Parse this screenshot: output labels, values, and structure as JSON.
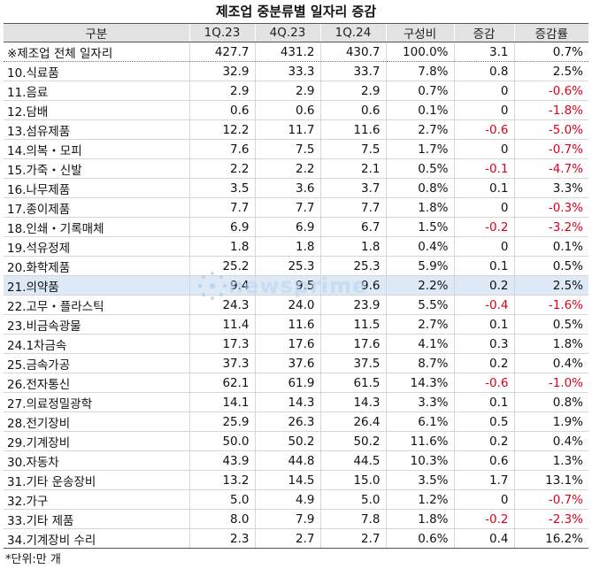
{
  "title": "제조업 중분류별 일자리 증감",
  "headers": [
    "구분",
    "1Q.23",
    "4Q.23",
    "1Q.24",
    "구성비",
    "증감",
    "증감률"
  ],
  "rows": [
    {
      "name": "※제조업 전체 일자리",
      "q1_23": "427.7",
      "q4_23": "431.2",
      "q1_24": "430.7",
      "share": "100.0%",
      "change": "3.1",
      "rate": "0.7%"
    },
    {
      "name": "10.식료품",
      "q1_23": "32.9",
      "q4_23": "33.3",
      "q1_24": "33.7",
      "share": "7.8%",
      "change": "0.8",
      "rate": "2.5%"
    },
    {
      "name": "11.음료",
      "q1_23": "2.9",
      "q4_23": "2.9",
      "q1_24": "2.9",
      "share": "0.7%",
      "change": "0",
      "rate": "-0.6%"
    },
    {
      "name": "12.담배",
      "q1_23": "0.6",
      "q4_23": "0.6",
      "q1_24": "0.6",
      "share": "0.1%",
      "change": "0",
      "rate": "-1.8%"
    },
    {
      "name": "13.섬유제품",
      "q1_23": "12.2",
      "q4_23": "11.7",
      "q1_24": "11.6",
      "share": "2.7%",
      "change": "-0.6",
      "rate": "-5.0%"
    },
    {
      "name": "14.의복・모피",
      "q1_23": "7.6",
      "q4_23": "7.5",
      "q1_24": "7.5",
      "share": "1.7%",
      "change": "0",
      "rate": "-0.7%"
    },
    {
      "name": "15.가죽・신발",
      "q1_23": "2.2",
      "q4_23": "2.2",
      "q1_24": "2.1",
      "share": "0.5%",
      "change": "-0.1",
      "rate": "-4.7%"
    },
    {
      "name": "16.나무제품",
      "q1_23": "3.5",
      "q4_23": "3.6",
      "q1_24": "3.7",
      "share": "0.8%",
      "change": "0.1",
      "rate": "3.3%"
    },
    {
      "name": "17.종이제품",
      "q1_23": "7.7",
      "q4_23": "7.7",
      "q1_24": "7.7",
      "share": "1.8%",
      "change": "0",
      "rate": "-0.3%"
    },
    {
      "name": "18.인쇄・기록매체",
      "q1_23": "6.9",
      "q4_23": "6.9",
      "q1_24": "6.7",
      "share": "1.5%",
      "change": "-0.2",
      "rate": "-3.2%"
    },
    {
      "name": "19.석유정제",
      "q1_23": "1.8",
      "q4_23": "1.8",
      "q1_24": "1.8",
      "share": "0.4%",
      "change": "0",
      "rate": "0.1%"
    },
    {
      "name": "20.화학제품",
      "q1_23": "25.2",
      "q4_23": "25.3",
      "q1_24": "25.3",
      "share": "5.9%",
      "change": "0.1",
      "rate": "0.5%"
    },
    {
      "name": "21.의약품",
      "q1_23": "9.4",
      "q4_23": "9.5",
      "q1_24": "9.6",
      "share": "2.2%",
      "change": "0.2",
      "rate": "2.5%"
    },
    {
      "name": "22.고무・플라스틱",
      "q1_23": "24.3",
      "q4_23": "24.0",
      "q1_24": "23.9",
      "share": "5.5%",
      "change": "-0.4",
      "rate": "-1.6%"
    },
    {
      "name": "23.비금속광물",
      "q1_23": "11.4",
      "q4_23": "11.6",
      "q1_24": "11.5",
      "share": "2.7%",
      "change": "0.1",
      "rate": "0.5%"
    },
    {
      "name": "24.1차금속",
      "q1_23": "17.3",
      "q4_23": "17.6",
      "q1_24": "17.6",
      "share": "4.1%",
      "change": "0.3",
      "rate": "1.8%"
    },
    {
      "name": "25.금속가공",
      "q1_23": "37.3",
      "q4_23": "37.6",
      "q1_24": "37.5",
      "share": "8.7%",
      "change": "0.2",
      "rate": "0.4%"
    },
    {
      "name": "26.전자통신",
      "q1_23": "62.1",
      "q4_23": "61.9",
      "q1_24": "61.5",
      "share": "14.3%",
      "change": "-0.6",
      "rate": "-1.0%"
    },
    {
      "name": "27.의료정밀광학",
      "q1_23": "14.1",
      "q4_23": "14.3",
      "q1_24": "14.3",
      "share": "3.3%",
      "change": "0.1",
      "rate": "0.8%"
    },
    {
      "name": "28.전기장비",
      "q1_23": "25.9",
      "q4_23": "26.3",
      "q1_24": "26.4",
      "share": "6.1%",
      "change": "0.5",
      "rate": "1.9%"
    },
    {
      "name": "29.기계장비",
      "q1_23": "50.0",
      "q4_23": "50.2",
      "q1_24": "50.2",
      "share": "11.6%",
      "change": "0.2",
      "rate": "0.4%"
    },
    {
      "name": "30.자동차",
      "q1_23": "43.9",
      "q4_23": "44.8",
      "q1_24": "44.5",
      "share": "10.3%",
      "change": "0.6",
      "rate": "1.3%"
    },
    {
      "name": "31.기타 운송장비",
      "q1_23": "13.2",
      "q4_23": "14.5",
      "q1_24": "15.0",
      "share": "3.5%",
      "change": "1.7",
      "rate": "13.1%"
    },
    {
      "name": "32.가구",
      "q1_23": "5.0",
      "q4_23": "4.9",
      "q1_24": "5.0",
      "share": "1.2%",
      "change": "0",
      "rate": "-0.7%"
    },
    {
      "name": "33.기타 제품",
      "q1_23": "8.0",
      "q4_23": "7.9",
      "q1_24": "7.8",
      "share": "1.8%",
      "change": "-0.2",
      "rate": "-2.3%"
    },
    {
      "name": "34.기계장비 수리",
      "q1_23": "2.3",
      "q4_23": "2.7",
      "q1_24": "2.7",
      "share": "0.6%",
      "change": "0.4",
      "rate": "16.2%"
    }
  ],
  "highlight_row": 12,
  "note": "*단위:만 개",
  "watermark": "newsprime",
  "colors": {
    "negative": "#e0001b",
    "header_bg": "#e3e3e3",
    "highlight_bg": "#dde9f6"
  }
}
